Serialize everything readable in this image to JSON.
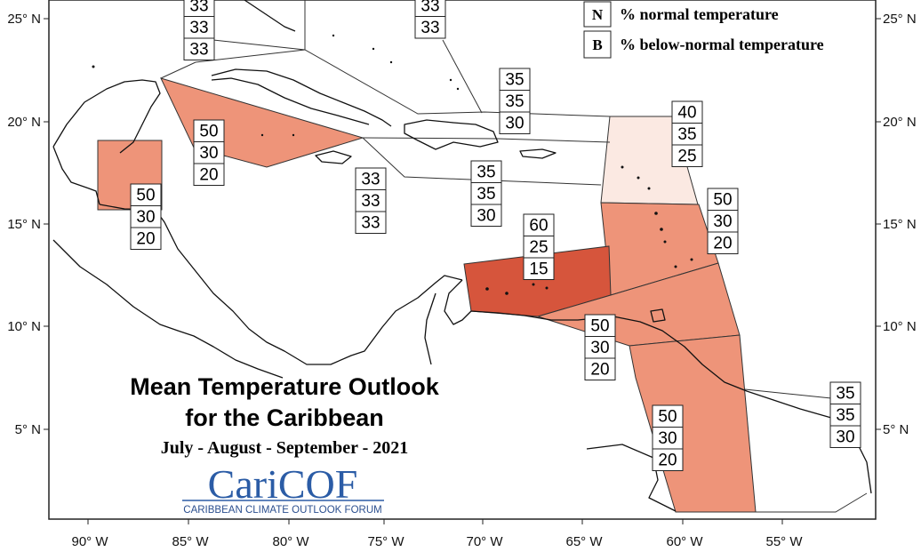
{
  "legend": [
    {
      "key": "N",
      "text": "% normal temperature"
    },
    {
      "key": "B",
      "text": "% below-normal temperature"
    }
  ],
  "title": {
    "line1": "Mean Temperature Outlook",
    "line2": "for the Caribbean",
    "period": "July - August - September - 2021"
  },
  "logo": {
    "name": "CariCOF",
    "tagline": "CARIBBEAN CLIMATE OUTLOOK FORUM"
  },
  "axes": {
    "x_ticks": [
      "90° W",
      "85° W",
      "80° W",
      "75° W",
      "70° W",
      "65° W",
      "60° W",
      "55° W"
    ],
    "y_ticks": [
      "25° N",
      "20° N",
      "15° N",
      "10° N",
      "5° N"
    ]
  },
  "colors": {
    "light": "#fbe9e2",
    "medium": "#ee9479",
    "strong": "#d6553c"
  },
  "regions": [
    {
      "id": "bahamas-west",
      "probs": [
        "33",
        "33",
        "33"
      ],
      "level": "none"
    },
    {
      "id": "bahamas-east",
      "probs": [
        "33",
        "33"
      ],
      "level": "none"
    },
    {
      "id": "cuba-cayman",
      "probs": [
        "50",
        "30",
        "20"
      ],
      "level": "medium"
    },
    {
      "id": "belize-yucatan",
      "probs": [
        "50",
        "30",
        "20"
      ],
      "level": "medium"
    },
    {
      "id": "jamaica-basin",
      "probs": [
        "33",
        "33",
        "33"
      ],
      "level": "none"
    },
    {
      "id": "greater-antilles-north",
      "probs": [
        "35",
        "35",
        "30"
      ],
      "level": "none"
    },
    {
      "id": "hispaniola-south",
      "probs": [
        "35",
        "35",
        "30"
      ],
      "level": "none"
    },
    {
      "id": "leeward-islands",
      "probs": [
        "40",
        "35",
        "25"
      ],
      "level": "light"
    },
    {
      "id": "windward-islands",
      "probs": [
        "50",
        "30",
        "20"
      ],
      "level": "medium"
    },
    {
      "id": "abc-islands",
      "probs": [
        "60",
        "25",
        "15"
      ],
      "level": "strong"
    },
    {
      "id": "trinidad-venezuela",
      "probs": [
        "50",
        "30",
        "20"
      ],
      "level": "medium"
    },
    {
      "id": "guyana",
      "probs": [
        "50",
        "30",
        "20"
      ],
      "level": "medium"
    },
    {
      "id": "suriname-guiana",
      "probs": [
        "35",
        "35",
        "30"
      ],
      "level": "none"
    }
  ]
}
